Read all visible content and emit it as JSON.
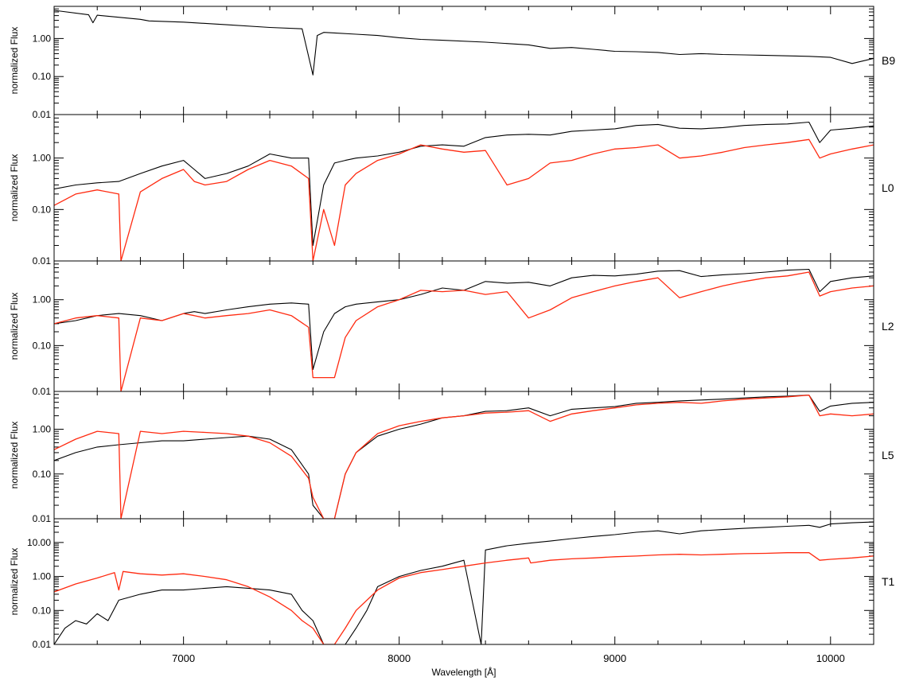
{
  "chart_data": {
    "type": "line",
    "xlabel": "Wavelength [Å]",
    "xlim": [
      6400,
      10200
    ],
    "x_ticks": [
      7000,
      8000,
      9000,
      10000
    ],
    "x_tick_labels": [
      "7000",
      "8000",
      "9000",
      "10000"
    ],
    "yscale": "log",
    "colors": {
      "observed": "#000000",
      "model": "#ff2a10"
    },
    "panels": [
      {
        "label": "B9",
        "ylabel": "normalized Flux",
        "ylim": [
          0.01,
          7
        ],
        "y_ticks": [
          0.01,
          0.1,
          1.0
        ],
        "y_tick_labels": [
          "0.01",
          "0.10",
          "1.00"
        ],
        "series": [
          {
            "role": "observed",
            "x": [
              6400,
              6560,
              6580,
              6600,
              6800,
              6840,
              7000,
              7200,
              7400,
              7550,
              7600,
              7620,
              7650,
              7700,
              7800,
              7900,
              8000,
              8100,
              8200,
              8400,
              8600,
              8700,
              8800,
              8900,
              9000,
              9100,
              9200,
              9300,
              9400,
              9500,
              9600,
              9700,
              9800,
              9900,
              10000,
              10100,
              10200
            ],
            "y": [
              5.5,
              4.2,
              2.6,
              4.1,
              3.2,
              2.9,
              2.7,
              2.3,
              1.95,
              1.8,
              0.11,
              1.2,
              1.45,
              1.4,
              1.3,
              1.2,
              1.05,
              0.95,
              0.9,
              0.8,
              0.68,
              0.55,
              0.58,
              0.52,
              0.46,
              0.45,
              0.43,
              0.38,
              0.4,
              0.38,
              0.37,
              0.36,
              0.35,
              0.34,
              0.32,
              0.22,
              0.3
            ]
          }
        ]
      },
      {
        "label": "L0",
        "ylabel": "normalized Flux",
        "ylim": [
          0.01,
          7
        ],
        "y_ticks": [
          0.01,
          0.1,
          1.0
        ],
        "y_tick_labels": [
          "0.01",
          "0.10",
          "1.00"
        ],
        "series": [
          {
            "role": "observed",
            "x": [
              6400,
              6500,
              6600,
              6700,
              6800,
              6900,
              7000,
              7050,
              7100,
              7200,
              7300,
              7400,
              7500,
              7580,
              7600,
              7650,
              7700,
              7750,
              7800,
              7900,
              8000,
              8100,
              8200,
              8300,
              8400,
              8500,
              8600,
              8700,
              8800,
              8900,
              9000,
              9100,
              9200,
              9300,
              9400,
              9500,
              9600,
              9700,
              9800,
              9900,
              9950,
              10000,
              10100,
              10200
            ],
            "y": [
              0.25,
              0.3,
              0.33,
              0.35,
              0.5,
              0.7,
              0.9,
              0.6,
              0.4,
              0.5,
              0.7,
              1.2,
              1.0,
              1.0,
              0.02,
              0.3,
              0.8,
              0.9,
              1.0,
              1.1,
              1.3,
              1.7,
              1.8,
              1.7,
              2.5,
              2.8,
              2.9,
              2.8,
              3.3,
              3.5,
              3.7,
              4.3,
              4.5,
              3.8,
              3.7,
              3.9,
              4.3,
              4.5,
              4.6,
              5.0,
              2.0,
              3.5,
              3.8,
              4.2
            ]
          },
          {
            "role": "model",
            "x": [
              6400,
              6500,
              6600,
              6700,
              6710,
              6800,
              6900,
              7000,
              7050,
              7100,
              7200,
              7300,
              7400,
              7500,
              7580,
              7600,
              7650,
              7700,
              7750,
              7800,
              7900,
              8000,
              8100,
              8200,
              8300,
              8400,
              8500,
              8600,
              8700,
              8800,
              8900,
              9000,
              9100,
              9200,
              9300,
              9400,
              9500,
              9600,
              9700,
              9800,
              9900,
              9950,
              10000,
              10100,
              10200
            ],
            "y": [
              0.12,
              0.2,
              0.24,
              0.2,
              0.01,
              0.22,
              0.4,
              0.6,
              0.35,
              0.3,
              0.35,
              0.6,
              0.9,
              0.7,
              0.4,
              0.01,
              0.1,
              0.02,
              0.3,
              0.5,
              0.9,
              1.2,
              1.8,
              1.5,
              1.3,
              1.4,
              0.3,
              0.4,
              0.8,
              0.9,
              1.2,
              1.5,
              1.6,
              1.8,
              1.0,
              1.1,
              1.3,
              1.6,
              1.8,
              2.0,
              2.3,
              1.0,
              1.2,
              1.5,
              1.8
            ]
          }
        ]
      },
      {
        "label": "L2",
        "ylabel": "normalized Flux",
        "ylim": [
          0.01,
          7
        ],
        "y_ticks": [
          0.01,
          0.1,
          1.0
        ],
        "y_tick_labels": [
          "0.01",
          "0.10",
          "1.00"
        ],
        "series": [
          {
            "role": "observed",
            "x": [
              6400,
              6500,
              6600,
              6700,
              6800,
              6900,
              7000,
              7050,
              7100,
              7200,
              7300,
              7400,
              7500,
              7580,
              7600,
              7650,
              7700,
              7750,
              7800,
              7900,
              8000,
              8100,
              8200,
              8300,
              8400,
              8500,
              8600,
              8700,
              8800,
              8900,
              9000,
              9100,
              9200,
              9300,
              9400,
              9500,
              9600,
              9700,
              9800,
              9900,
              9950,
              10000,
              10100,
              10200
            ],
            "y": [
              0.3,
              0.35,
              0.45,
              0.5,
              0.45,
              0.35,
              0.5,
              0.55,
              0.5,
              0.6,
              0.7,
              0.8,
              0.85,
              0.8,
              0.03,
              0.2,
              0.5,
              0.7,
              0.8,
              0.9,
              1.0,
              1.3,
              1.8,
              1.6,
              2.5,
              2.3,
              2.4,
              2.0,
              3.0,
              3.4,
              3.3,
              3.6,
              4.2,
              4.3,
              3.2,
              3.5,
              3.7,
              4.0,
              4.4,
              4.6,
              1.5,
              2.5,
              3.0,
              3.3
            ]
          },
          {
            "role": "model",
            "x": [
              6400,
              6500,
              6600,
              6700,
              6710,
              6800,
              6900,
              7000,
              7050,
              7100,
              7200,
              7300,
              7400,
              7500,
              7580,
              7600,
              7650,
              7700,
              7750,
              7800,
              7900,
              8000,
              8100,
              8200,
              8300,
              8400,
              8500,
              8600,
              8700,
              8800,
              8900,
              9000,
              9100,
              9200,
              9300,
              9400,
              9500,
              9600,
              9700,
              9800,
              9900,
              9950,
              10000,
              10100,
              10200
            ],
            "y": [
              0.3,
              0.4,
              0.45,
              0.4,
              0.01,
              0.4,
              0.35,
              0.5,
              0.45,
              0.4,
              0.45,
              0.5,
              0.6,
              0.45,
              0.25,
              0.02,
              0.02,
              0.02,
              0.15,
              0.35,
              0.7,
              1.0,
              1.6,
              1.5,
              1.6,
              1.3,
              1.5,
              0.4,
              0.6,
              1.1,
              1.5,
              2.0,
              2.5,
              3.0,
              1.1,
              1.5,
              2.0,
              2.5,
              3.0,
              3.3,
              4.0,
              1.2,
              1.5,
              1.8,
              2.0
            ]
          }
        ]
      },
      {
        "label": "L5",
        "ylabel": "normalized Flux",
        "ylim": [
          0.01,
          7
        ],
        "y_ticks": [
          0.01,
          0.1,
          1.0
        ],
        "y_tick_labels": [
          "0.01",
          "0.10",
          "1.00"
        ],
        "series": [
          {
            "role": "observed",
            "x": [
              6400,
              6500,
              6600,
              6700,
              6800,
              6900,
              7000,
              7100,
              7200,
              7300,
              7400,
              7500,
              7580,
              7600,
              7650,
              7700,
              7750,
              7800,
              7900,
              8000,
              8100,
              8200,
              8300,
              8400,
              8500,
              8600,
              8700,
              8800,
              8900,
              9000,
              9100,
              9200,
              9300,
              9400,
              9500,
              9600,
              9700,
              9800,
              9900,
              9950,
              10000,
              10100,
              10200
            ],
            "y": [
              0.2,
              0.3,
              0.4,
              0.45,
              0.5,
              0.55,
              0.55,
              0.6,
              0.65,
              0.7,
              0.6,
              0.35,
              0.1,
              0.02,
              0.01,
              0.01,
              0.1,
              0.3,
              0.7,
              1.0,
              1.3,
              1.8,
              2.0,
              2.5,
              2.6,
              3.0,
              2.0,
              2.8,
              3.0,
              3.2,
              3.8,
              4.0,
              4.3,
              4.5,
              4.7,
              5.0,
              5.3,
              5.5,
              5.8,
              2.5,
              3.3,
              3.8,
              4.0
            ]
          },
          {
            "role": "model",
            "x": [
              6400,
              6500,
              6600,
              6700,
              6710,
              6800,
              6900,
              7000,
              7100,
              7200,
              7300,
              7400,
              7500,
              7580,
              7600,
              7650,
              7700,
              7750,
              7800,
              7900,
              8000,
              8100,
              8200,
              8300,
              8400,
              8500,
              8600,
              8700,
              8800,
              8900,
              9000,
              9100,
              9200,
              9300,
              9400,
              9500,
              9600,
              9700,
              9800,
              9900,
              9950,
              10000,
              10100,
              10200
            ],
            "y": [
              0.35,
              0.6,
              0.9,
              0.8,
              0.01,
              0.9,
              0.8,
              0.9,
              0.85,
              0.8,
              0.7,
              0.5,
              0.25,
              0.08,
              0.03,
              0.01,
              0.01,
              0.1,
              0.3,
              0.8,
              1.2,
              1.5,
              1.8,
              2.0,
              2.3,
              2.4,
              2.6,
              1.5,
              2.2,
              2.6,
              3.0,
              3.5,
              3.8,
              4.0,
              3.8,
              4.3,
              4.7,
              5.0,
              5.3,
              5.8,
              2.0,
              2.2,
              2.0,
              2.2
            ]
          }
        ]
      },
      {
        "label": "T1",
        "ylabel": "normalized Flux",
        "ylim": [
          0.01,
          50
        ],
        "y_ticks": [
          0.01,
          0.1,
          1.0,
          10.0
        ],
        "y_tick_labels": [
          "0.01",
          "0.10",
          "1.00",
          "10.00"
        ],
        "series": [
          {
            "role": "observed",
            "x": [
              6400,
              6450,
              6500,
              6550,
              6600,
              6650,
              6700,
              6800,
              6900,
              7000,
              7100,
              7200,
              7300,
              7400,
              7500,
              7550,
              7600,
              7650,
              7700,
              7750,
              7800,
              7850,
              7900,
              8000,
              8100,
              8200,
              8300,
              8380,
              8400,
              8500,
              8600,
              8700,
              8800,
              8900,
              9000,
              9100,
              9200,
              9300,
              9400,
              9500,
              9600,
              9700,
              9800,
              9900,
              9950,
              10000,
              10100,
              10200
            ],
            "y": [
              0.01,
              0.03,
              0.05,
              0.04,
              0.08,
              0.05,
              0.2,
              0.3,
              0.4,
              0.4,
              0.45,
              0.5,
              0.45,
              0.4,
              0.3,
              0.1,
              0.05,
              0.01,
              0.01,
              0.01,
              0.03,
              0.1,
              0.5,
              1.0,
              1.5,
              2.0,
              3.0,
              0.01,
              6.0,
              8.0,
              9.5,
              11.0,
              13.0,
              15.0,
              17.0,
              20.0,
              22.0,
              18.0,
              22.0,
              24.0,
              26.0,
              28.0,
              30.0,
              32.0,
              28.0,
              35.0,
              38.0,
              40.0
            ]
          },
          {
            "role": "model",
            "x": [
              6400,
              6500,
              6600,
              6680,
              6700,
              6720,
              6800,
              6900,
              7000,
              7100,
              7200,
              7300,
              7400,
              7500,
              7550,
              7600,
              7650,
              7700,
              7750,
              7800,
              7900,
              8000,
              8100,
              8200,
              8300,
              8400,
              8500,
              8600,
              8610,
              8700,
              8800,
              8900,
              9000,
              9100,
              9200,
              9300,
              9400,
              9500,
              9600,
              9700,
              9800,
              9900,
              9950,
              10000,
              10100,
              10200
            ],
            "y": [
              0.35,
              0.6,
              0.9,
              1.3,
              0.4,
              1.4,
              1.2,
              1.1,
              1.2,
              1.0,
              0.8,
              0.5,
              0.25,
              0.1,
              0.05,
              0.03,
              0.01,
              0.01,
              0.03,
              0.1,
              0.4,
              0.9,
              1.3,
              1.6,
              2.0,
              2.5,
              3.0,
              3.5,
              2.5,
              3.0,
              3.3,
              3.5,
              3.8,
              4.0,
              4.3,
              4.5,
              4.3,
              4.5,
              4.7,
              4.8,
              5.0,
              5.0,
              3.0,
              3.2,
              3.5,
              4.0
            ]
          }
        ]
      }
    ]
  }
}
